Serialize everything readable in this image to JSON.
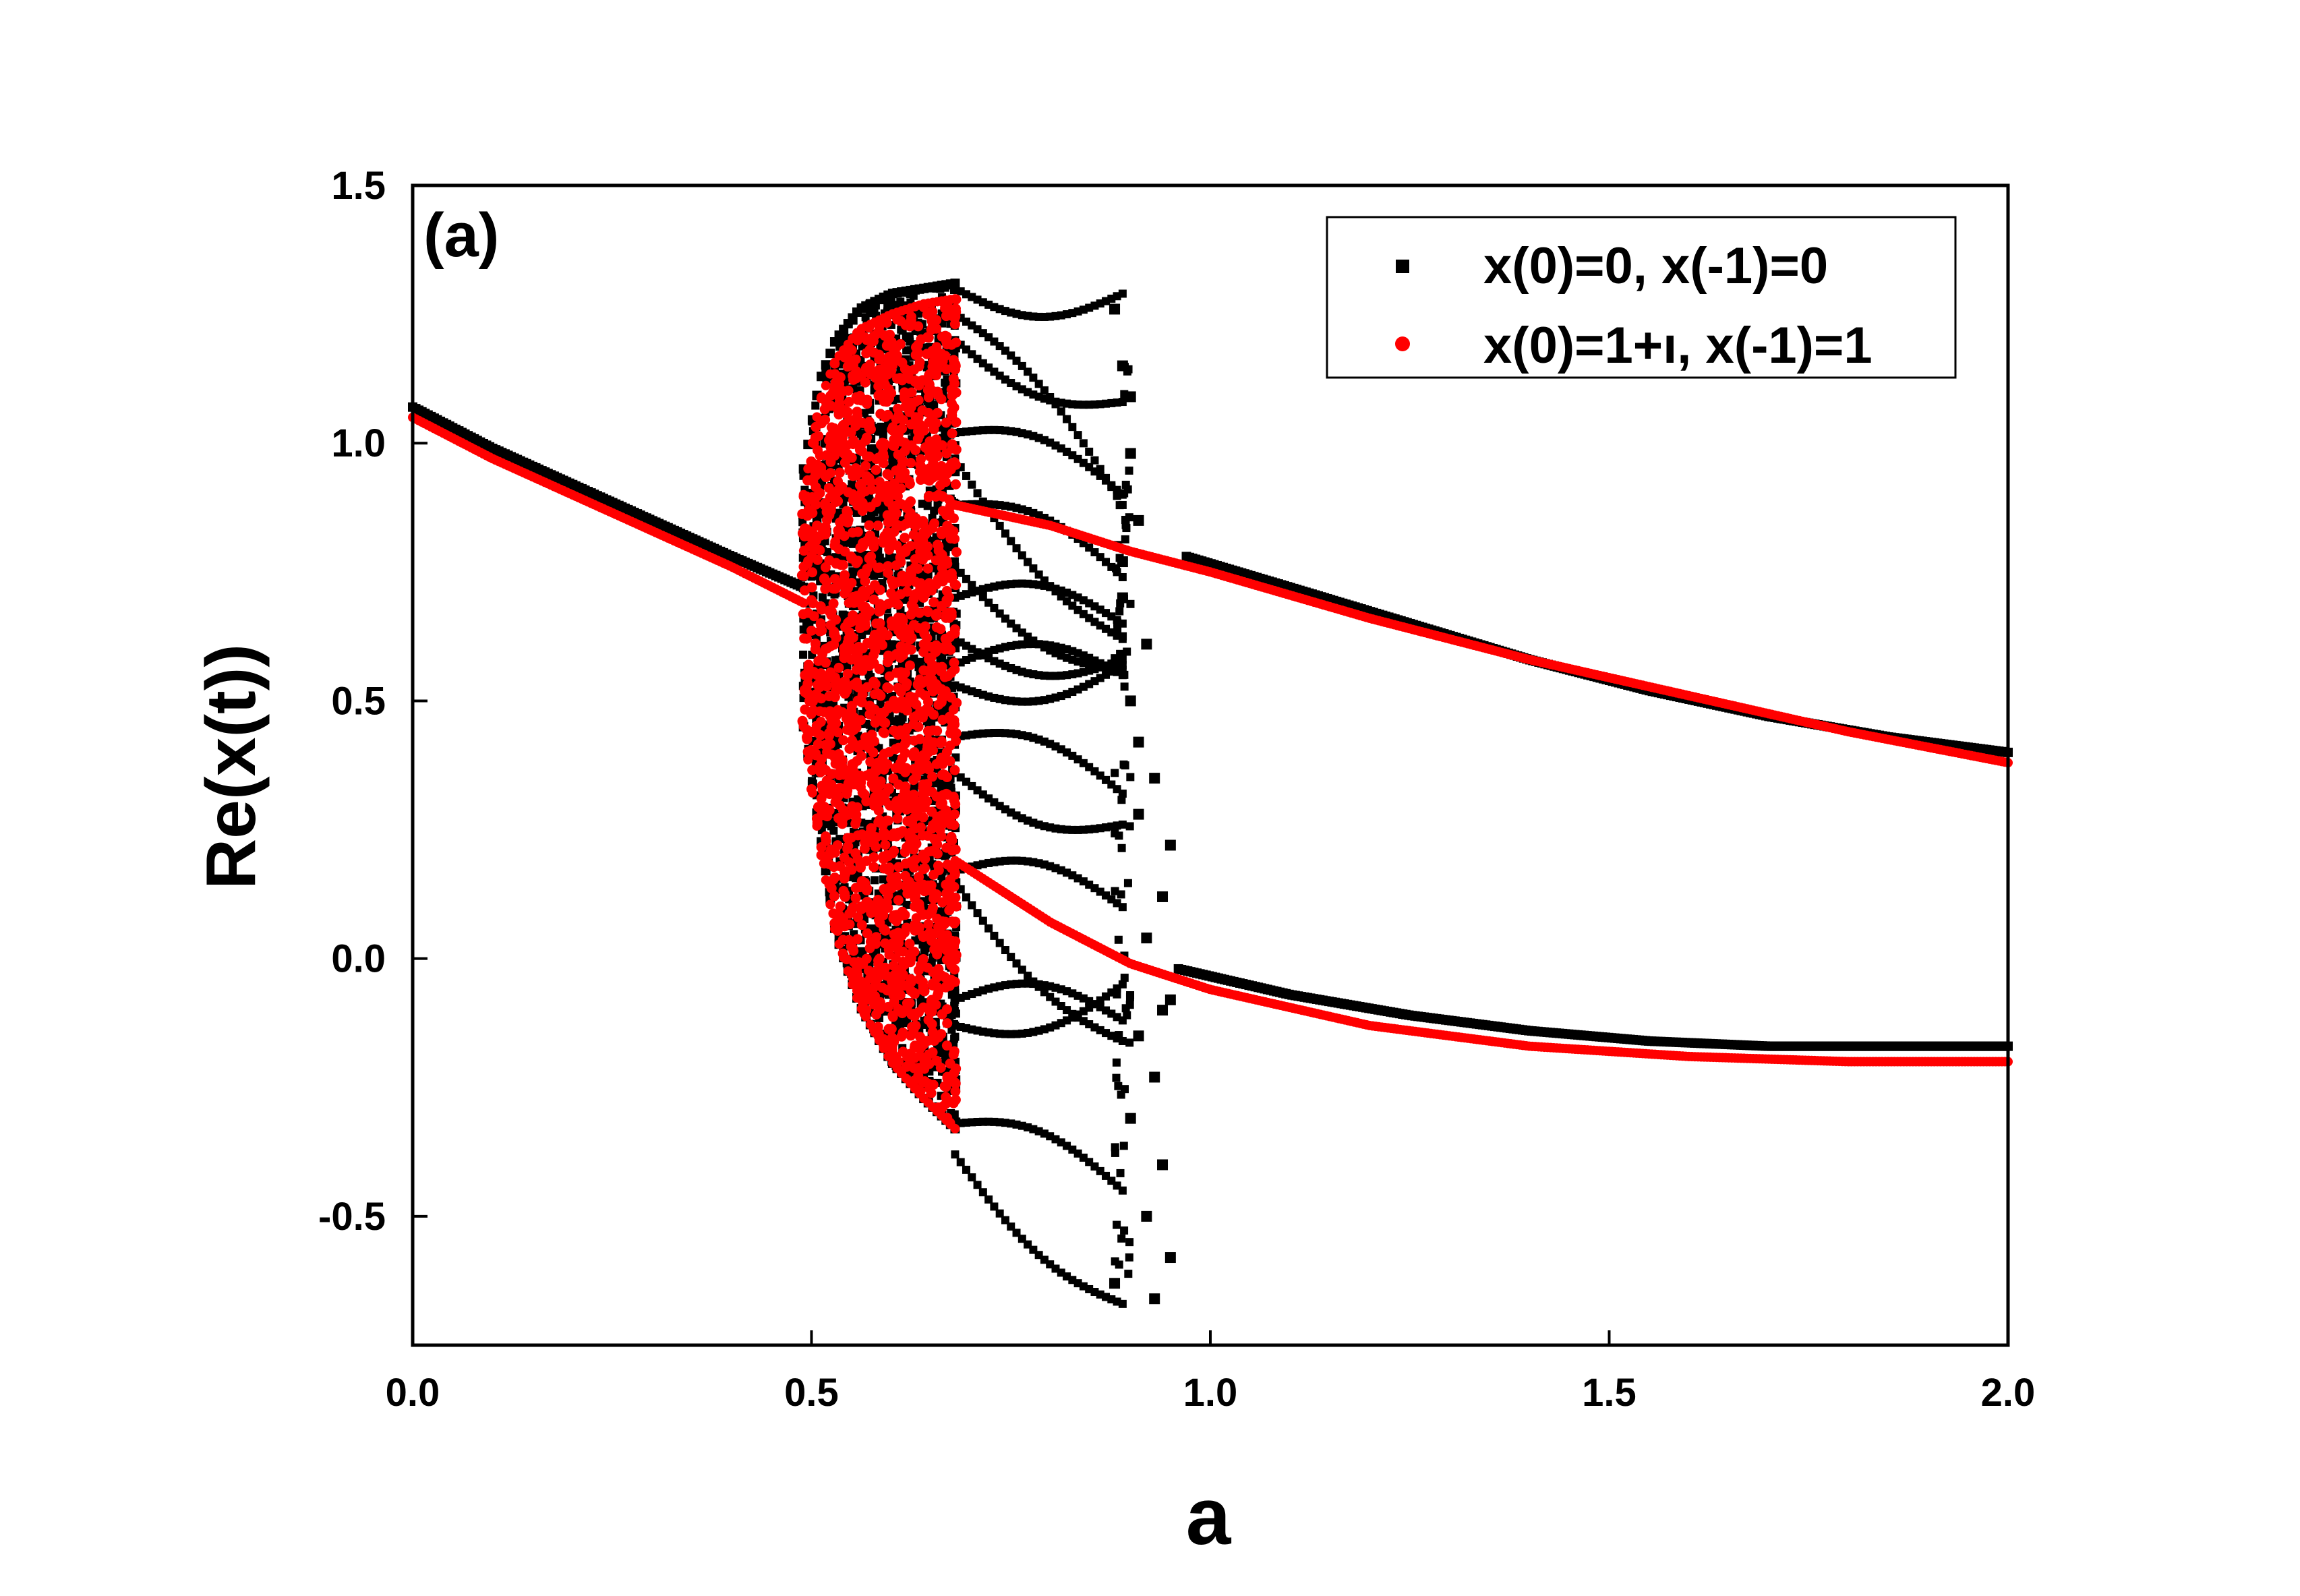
{
  "chart_data": {
    "type": "scatter",
    "panel_label": "(a)",
    "xlabel": "a",
    "ylabel": "Re(x(t))",
    "xlim": [
      0.0,
      2.0
    ],
    "ylim": [
      -0.75,
      1.5
    ],
    "xticks": [
      0.0,
      0.5,
      1.0,
      1.5,
      2.0
    ],
    "xtick_labels": [
      "0.0",
      "0.5",
      "1.0",
      "1.5",
      "2.0"
    ],
    "yticks": [
      -0.5,
      0.0,
      0.5,
      1.0,
      1.5
    ],
    "ytick_labels": [
      "-0.5",
      "0.0",
      "0.5",
      "1.0",
      "1.5"
    ],
    "legend_position": "top-right",
    "series": [
      {
        "name": "x(0)=0, x(-1)=0",
        "color": "#000000",
        "marker": "square",
        "segments": [
          {
            "kind": "branch",
            "x": [
              0.0,
              0.1,
              0.2,
              0.3,
              0.4,
              0.49
            ],
            "y": [
              1.07,
              0.99,
              0.92,
              0.85,
              0.78,
              0.72
            ]
          },
          {
            "kind": "chaotic_band",
            "x_range": [
              0.49,
              0.68
            ],
            "upper": {
              "x": [
                0.49,
                0.51,
                0.53,
                0.56,
                0.6,
                0.64,
                0.68
              ],
              "y": [
                0.95,
                1.12,
                1.2,
                1.26,
                1.29,
                1.3,
                1.31
              ]
            },
            "lower": {
              "x": [
                0.49,
                0.51,
                0.53,
                0.56,
                0.6,
                0.64,
                0.68
              ],
              "y": [
                0.45,
                0.25,
                0.05,
                -0.09,
                -0.2,
                -0.27,
                -0.33
              ]
            }
          },
          {
            "kind": "orbit_lines",
            "x_range": [
              0.68,
              0.89
            ],
            "start_y": [
              1.3,
              1.25,
              1.2,
              1.02,
              0.97,
              0.88,
              0.76,
              0.7,
              0.62,
              0.57,
              0.53,
              0.43,
              0.36,
              0.17,
              0.15,
              -0.08,
              -0.13,
              -0.32,
              -0.38
            ],
            "end_y": [
              1.29,
              0.88,
              1.08,
              0.9,
              0.62,
              0.74,
              0.56,
              0.65,
              0.58,
              0.55,
              0.57,
              0.32,
              0.26,
              0.1,
              -0.16,
              -0.12,
              -0.05,
              -0.45,
              -0.67
            ]
          },
          {
            "kind": "scattered",
            "x": [
              0.88,
              0.89,
              0.9,
              0.9,
              0.91,
              0.89,
              0.92,
              0.9,
              0.91,
              0.93,
              0.95,
              0.94,
              0.92,
              0.95,
              0.91,
              0.93,
              0.9,
              0.94,
              0.92,
              0.95,
              0.88,
              0.93,
              0.91,
              0.89,
              0.94
            ],
            "y": [
              1.26,
              1.15,
              1.09,
              0.98,
              0.85,
              0.7,
              0.61,
              0.5,
              0.42,
              0.35,
              0.22,
              0.12,
              0.04,
              -0.08,
              -0.15,
              -0.23,
              -0.31,
              -0.4,
              -0.5,
              -0.58,
              -0.63,
              -0.66,
              0.28,
              0.77,
              -0.1
            ]
          },
          {
            "kind": "branch",
            "x": [
              0.97,
              1.1,
              1.25,
              1.4,
              1.55,
              1.7,
              1.85,
              2.0
            ],
            "y": [
              0.78,
              0.72,
              0.65,
              0.58,
              0.52,
              0.47,
              0.43,
              0.4
            ]
          },
          {
            "kind": "branch",
            "x": [
              0.96,
              1.1,
              1.25,
              1.4,
              1.55,
              1.7,
              1.85,
              2.0
            ],
            "y": [
              -0.02,
              -0.07,
              -0.11,
              -0.14,
              -0.16,
              -0.17,
              -0.17,
              -0.17
            ]
          }
        ]
      },
      {
        "name": "x(0)=1+ı, x(-1)=1",
        "color": "#ff0000",
        "marker": "circle",
        "segments": [
          {
            "kind": "branch",
            "x": [
              0.0,
              0.1,
              0.2,
              0.3,
              0.4,
              0.49
            ],
            "y": [
              1.05,
              0.97,
              0.9,
              0.83,
              0.76,
              0.69
            ]
          },
          {
            "kind": "chaotic_band",
            "x_range": [
              0.49,
              0.68
            ],
            "upper": {
              "x": [
                0.49,
                0.51,
                0.53,
                0.56,
                0.6,
                0.64,
                0.68
              ],
              "y": [
                0.9,
                1.08,
                1.16,
                1.22,
                1.25,
                1.27,
                1.28
              ]
            },
            "lower": {
              "x": [
                0.49,
                0.51,
                0.53,
                0.56,
                0.6,
                0.64,
                0.68
              ],
              "y": [
                0.45,
                0.22,
                0.05,
                -0.09,
                -0.2,
                -0.27,
                -0.33
              ]
            }
          },
          {
            "kind": "branch",
            "x": [
              0.68,
              0.8,
              0.9,
              1.0,
              1.2,
              1.4,
              1.6,
              1.8,
              2.0
            ],
            "y": [
              0.88,
              0.84,
              0.79,
              0.75,
              0.66,
              0.58,
              0.51,
              0.44,
              0.38
            ]
          },
          {
            "kind": "branch",
            "x": [
              0.68,
              0.8,
              0.9,
              1.0,
              1.2,
              1.4,
              1.6,
              1.8,
              2.0
            ],
            "y": [
              0.19,
              0.07,
              -0.01,
              -0.06,
              -0.13,
              -0.17,
              -0.19,
              -0.2,
              -0.2
            ]
          }
        ]
      }
    ]
  }
}
